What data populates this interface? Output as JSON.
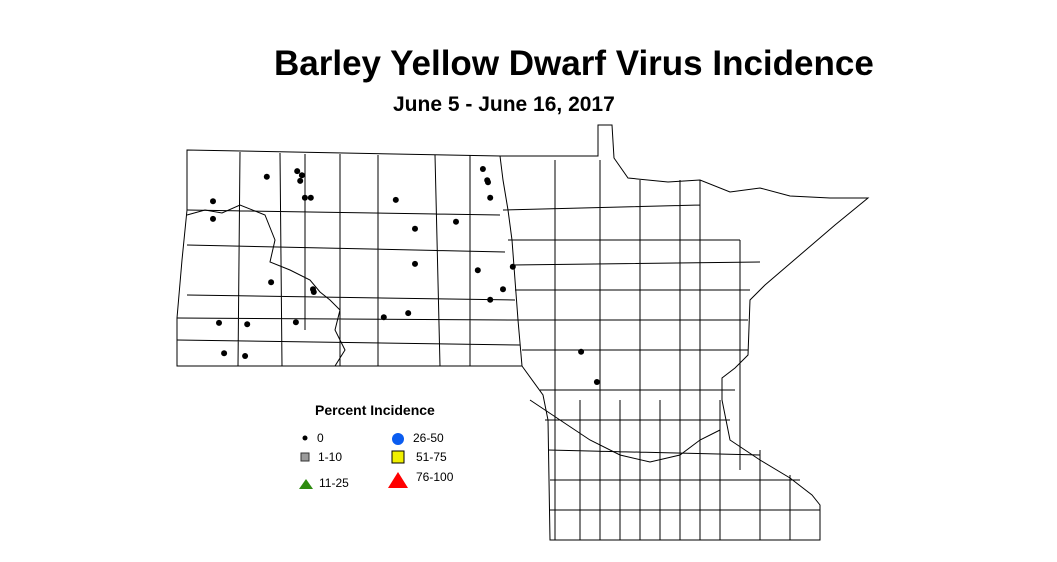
{
  "title": "Barley Yellow Dwarf Virus Incidence",
  "subtitle": "June 5 - June 16, 2017",
  "legend": {
    "title": "Percent Incidence",
    "items": [
      {
        "label": "0",
        "symbol": "dot",
        "color": "#000000"
      },
      {
        "label": "1-10",
        "symbol": "square",
        "color": "#9a9a9a"
      },
      {
        "label": "11-25",
        "symbol": "triangle",
        "color": "#2e8b10"
      },
      {
        "label": "26-50",
        "symbol": "circle",
        "color": "#0a5cf0"
      },
      {
        "label": "51-75",
        "symbol": "square",
        "color": "#f0f000"
      },
      {
        "label": "76-100",
        "symbol": "triangle",
        "color": "#ff0000"
      }
    ]
  },
  "sites": [
    {
      "lon": -103.44,
      "lat": 48.27,
      "category": "0"
    },
    {
      "lon": -103.44,
      "lat": 48.02,
      "category": "0"
    },
    {
      "lon": -102.18,
      "lat": 48.62,
      "category": "0"
    },
    {
      "lon": -101.47,
      "lat": 48.7,
      "category": "0"
    },
    {
      "lon": -101.36,
      "lat": 48.64,
      "category": "0"
    },
    {
      "lon": -101.4,
      "lat": 48.56,
      "category": "0"
    },
    {
      "lon": -101.29,
      "lat": 48.32,
      "category": "0"
    },
    {
      "lon": -101.15,
      "lat": 48.32,
      "category": "0"
    },
    {
      "lon": -99.16,
      "lat": 48.29,
      "category": "0"
    },
    {
      "lon": -98.71,
      "lat": 47.88,
      "category": "0"
    },
    {
      "lon": -97.75,
      "lat": 47.98,
      "category": "0"
    },
    {
      "lon": -97.12,
      "lat": 48.73,
      "category": "0"
    },
    {
      "lon": -97.02,
      "lat": 48.57,
      "category": "0"
    },
    {
      "lon": -97.0,
      "lat": 48.54,
      "category": "0"
    },
    {
      "lon": -96.95,
      "lat": 48.32,
      "category": "0"
    },
    {
      "lon": -102.08,
      "lat": 47.12,
      "category": "0"
    },
    {
      "lon": -101.1,
      "lat": 47.02,
      "category": "0"
    },
    {
      "lon": -101.08,
      "lat": 46.98,
      "category": "0"
    },
    {
      "lon": -98.71,
      "lat": 47.38,
      "category": "0"
    },
    {
      "lon": -97.24,
      "lat": 47.29,
      "category": "0"
    },
    {
      "lon": -96.42,
      "lat": 47.34,
      "category": "0"
    },
    {
      "lon": -96.65,
      "lat": 47.02,
      "category": "0"
    },
    {
      "lon": -96.95,
      "lat": 46.87,
      "category": "0"
    },
    {
      "lon": -103.3,
      "lat": 46.54,
      "category": "0"
    },
    {
      "lon": -102.64,
      "lat": 46.52,
      "category": "0"
    },
    {
      "lon": -101.5,
      "lat": 46.55,
      "category": "0"
    },
    {
      "lon": -99.44,
      "lat": 46.62,
      "category": "0"
    },
    {
      "lon": -98.87,
      "lat": 46.68,
      "category": "0"
    },
    {
      "lon": -103.18,
      "lat": 46.11,
      "category": "0"
    },
    {
      "lon": -102.69,
      "lat": 46.07,
      "category": "0"
    },
    {
      "lon": -94.82,
      "lat": 46.13,
      "category": "0"
    },
    {
      "lon": -94.45,
      "lat": 45.7,
      "category": "0"
    }
  ]
}
